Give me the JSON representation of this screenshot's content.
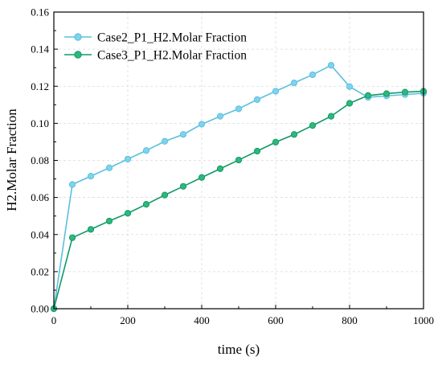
{
  "chart_data": {
    "type": "line",
    "title": "",
    "xlabel": "time (s)",
    "ylabel": "H2.Molar Fraction",
    "xlim": [
      0,
      1000
    ],
    "ylim": [
      0,
      0.16
    ],
    "xticks": [
      "0",
      "200",
      "400",
      "600",
      "800",
      "1000"
    ],
    "yticks": [
      "0.00",
      "0.02",
      "0.04",
      "0.06",
      "0.08",
      "0.10",
      "0.12",
      "0.14",
      "0.16"
    ],
    "grid": true,
    "legend_position": "top-left",
    "x": [
      0,
      50,
      100,
      150,
      200,
      250,
      300,
      350,
      400,
      450,
      500,
      550,
      600,
      650,
      700,
      750,
      800,
      850,
      900,
      950,
      1000
    ],
    "series": [
      {
        "name": "Case2_P1_H2.Molar Fraction",
        "color": "#5BC0DE",
        "marker_fill": "#7FD3EC",
        "values": [
          0.0,
          0.067,
          0.0715,
          0.076,
          0.0807,
          0.0853,
          0.0903,
          0.094,
          0.0995,
          0.1038,
          0.1078,
          0.1128,
          0.1173,
          0.1218,
          0.1262,
          0.1313,
          0.1198,
          0.114,
          0.1148,
          0.1155,
          0.1162
        ]
      },
      {
        "name": "Case3_P1_H2.Molar Fraction",
        "color": "#119966",
        "marker_fill": "#2EB87E",
        "values": [
          0.0,
          0.0383,
          0.0428,
          0.0473,
          0.0515,
          0.0563,
          0.0613,
          0.066,
          0.0708,
          0.0755,
          0.0802,
          0.085,
          0.0898,
          0.094,
          0.0988,
          0.1038,
          0.1108,
          0.115,
          0.116,
          0.1168,
          0.1173
        ]
      }
    ]
  }
}
